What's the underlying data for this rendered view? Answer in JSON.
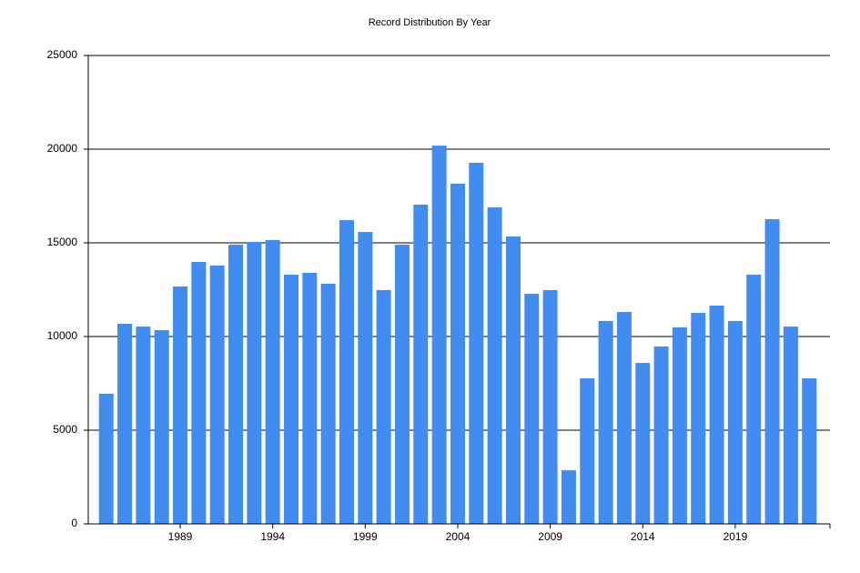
{
  "chart_data": {
    "type": "bar",
    "title": "Record Distribution By Year",
    "categories": [
      null,
      null,
      null,
      null,
      "1989",
      null,
      null,
      null,
      null,
      "1994",
      null,
      null,
      null,
      null,
      "1999",
      null,
      null,
      null,
      null,
      "2004",
      null,
      null,
      null,
      null,
      "2009",
      null,
      null,
      null,
      null,
      "2014",
      null,
      null,
      null,
      null,
      "2019",
      null,
      null,
      null,
      null
    ],
    "values": [
      6950,
      10680,
      10530,
      10340,
      12670,
      13980,
      13790,
      14900,
      15050,
      15150,
      13300,
      13400,
      12820,
      16210,
      15580,
      12480,
      14900,
      17040,
      20190,
      18160,
      19270,
      16890,
      15340,
      12280,
      12480,
      2860,
      7770,
      10830,
      11310,
      8590,
      9470,
      10490,
      11260,
      11650,
      10830,
      13300,
      16260,
      10530,
      7770
    ],
    "color": "#418cf0",
    "ylim": [
      0,
      25000
    ],
    "yticks": [
      0,
      5000,
      10000,
      15000,
      20000,
      25000
    ],
    "grid": true
  }
}
